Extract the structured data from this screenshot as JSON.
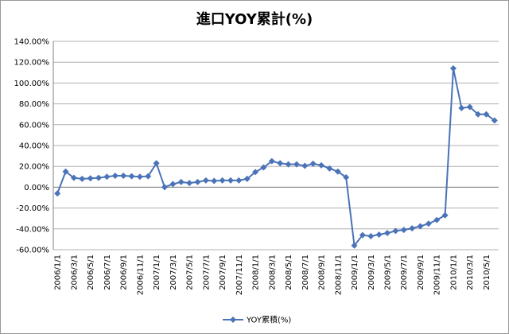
{
  "chart_data": {
    "type": "line",
    "title": "進口YOY累計(%)",
    "categories": [
      "2006/1/1",
      null,
      "2006/3/1",
      null,
      "2006/5/1",
      null,
      "2006/7/1",
      null,
      "2006/9/1",
      null,
      "2006/11/1",
      null,
      "2007/1/1",
      null,
      "2007/3/1",
      null,
      "2007/5/1",
      null,
      "2007/7/1",
      null,
      "2007/9/1",
      null,
      "2007/11/1",
      null,
      "2008/1/1",
      null,
      "2008/3/1",
      null,
      "2008/5/1",
      null,
      "2008/7/1",
      null,
      "2008/9/1",
      null,
      "2008/11/1",
      null,
      "2009/1/1",
      null,
      "2009/3/1",
      null,
      "2009/5/1",
      null,
      "2009/7/1",
      null,
      "2009/9/1",
      null,
      "2009/11/1",
      null,
      "2010/1/1",
      null,
      "2010/3/1",
      null,
      "2010/5/1",
      null
    ],
    "series": [
      {
        "name": "YOY累積(%)",
        "color": "#4a73b8",
        "values": [
          -6,
          15,
          9,
          8,
          8.5,
          9,
          10,
          11,
          11,
          10.5,
          10,
          10.5,
          23,
          0,
          3,
          5,
          4,
          5,
          6.5,
          6,
          6.5,
          6.5,
          6.5,
          8,
          14.5,
          19,
          25,
          23,
          22,
          22,
          20.5,
          22.5,
          21,
          18,
          15,
          9.5,
          -56,
          -46,
          -47,
          -45.5,
          -44,
          -42,
          -41,
          -39.5,
          -37.5,
          -35,
          -31.5,
          -27,
          114,
          76,
          77,
          70,
          70,
          64
        ]
      }
    ],
    "ylim": [
      -60,
      140
    ],
    "yticks": [
      {
        "value": -60,
        "label": "-60.00%"
      },
      {
        "value": -40,
        "label": "-40.00%"
      },
      {
        "value": -20,
        "label": "-20.00%"
      },
      {
        "value": 0,
        "label": "0.00%"
      },
      {
        "value": 20,
        "label": "20.00%"
      },
      {
        "value": 40,
        "label": "40.00%"
      },
      {
        "value": 60,
        "label": "60.00%"
      },
      {
        "value": 80,
        "label": "80.00%"
      },
      {
        "value": 100,
        "label": "100.00%"
      },
      {
        "value": 120,
        "label": "120.00%"
      },
      {
        "value": 140,
        "label": "140.00%"
      }
    ],
    "grid": true,
    "legend": "bottom"
  }
}
